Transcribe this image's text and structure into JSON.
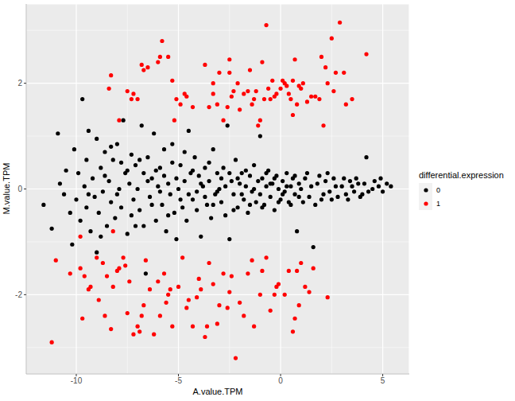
{
  "chart_data": {
    "type": "scatter",
    "x_label": "A.value.TPM",
    "y_label": "M.value.TPM",
    "legend_title": "differential.expression",
    "legend": "right",
    "grid": true,
    "marker": "circle",
    "xlim": [
      -12.45,
      6.3
    ],
    "xticks": [
      -10,
      -5,
      0,
      5
    ],
    "ylim": [
      -3.5,
      3.5
    ],
    "yticks": [
      -2,
      0,
      2
    ],
    "series": [
      {
        "name": "0",
        "color": "#000000",
        "x": [
          -11.6,
          -11.2,
          -10.9,
          -10.8,
          -10.6,
          -10.5,
          -10.3,
          -10.2,
          -10.1,
          -10.0,
          -9.9,
          -9.8,
          -9.7,
          -9.6,
          -9.5,
          -9.5,
          -9.4,
          -9.3,
          -9.2,
          -9.1,
          -9.0,
          -8.9,
          -8.8,
          -8.7,
          -8.6,
          -8.5,
          -8.4,
          -8.3,
          -8.2,
          -8.1,
          -8.0,
          -7.9,
          -7.8,
          -7.7,
          -7.6,
          -7.5,
          -7.4,
          -7.3,
          -7.2,
          -7.1,
          -9.0,
          -8.8,
          -8.6,
          -8.3,
          -8.0,
          -7.8,
          -7.5,
          -7.3,
          -7.1,
          -9.4,
          -7.0,
          -6.9,
          -6.8,
          -6.7,
          -6.6,
          -6.5,
          -6.4,
          -6.3,
          -6.2,
          -6.1,
          -6.0,
          -5.9,
          -5.8,
          -5.7,
          -5.6,
          -5.5,
          -5.4,
          -5.3,
          -5.2,
          -5.1,
          -6.9,
          -6.7,
          -6.5,
          -6.3,
          -6.1,
          -5.9,
          -5.7,
          -5.5,
          -5.3,
          -5.1,
          -5.0,
          -4.9,
          -4.8,
          -4.7,
          -4.6,
          -4.5,
          -4.4,
          -4.3,
          -4.2,
          -4.1,
          -4.0,
          -3.9,
          -3.8,
          -3.7,
          -3.6,
          -3.5,
          -3.4,
          -3.3,
          -3.2,
          -3.1,
          -4.9,
          -4.7,
          -4.5,
          -4.3,
          -4.1,
          -3.9,
          -3.7,
          -3.5,
          -3.3,
          -3.1,
          -3.0,
          -2.9,
          -2.8,
          -2.7,
          -2.6,
          -2.5,
          -2.4,
          -2.3,
          -2.2,
          -2.1,
          -2.0,
          -1.9,
          -1.8,
          -1.7,
          -1.6,
          -1.5,
          -1.4,
          -1.3,
          -1.2,
          -1.1,
          -2.9,
          -2.7,
          -2.5,
          -2.3,
          -2.1,
          -1.9,
          -1.7,
          -1.5,
          -1.3,
          -1.0,
          -1.0,
          -0.9,
          -0.8,
          -0.7,
          -0.6,
          -0.5,
          -0.4,
          -0.3,
          -0.2,
          -0.1,
          0.0,
          0.1,
          0.2,
          0.3,
          0.4,
          0.5,
          0.6,
          0.7,
          0.8,
          0.9,
          -0.9,
          -0.7,
          -0.5,
          -0.3,
          -0.1,
          0.1,
          0.3,
          0.5,
          0.7,
          0.9,
          1.0,
          1.2,
          1.4,
          1.6,
          1.8,
          2.0,
          2.2,
          2.4,
          2.6,
          2.8,
          3.0,
          3.2,
          3.4,
          3.6,
          3.8,
          4.0,
          4.2,
          4.5,
          4.8,
          5.4,
          1.1,
          1.3,
          1.5,
          1.7,
          1.9,
          2.1,
          2.3,
          2.5,
          2.7,
          3.1,
          3.3,
          3.5,
          3.7,
          3.9,
          4.1,
          4.3,
          4.6,
          5.0,
          5.2,
          4.9
        ],
        "values": [
          -0.3,
          -0.75,
          1.05,
          0.1,
          -0.1,
          0.35,
          -0.45,
          -1.05,
          0.75,
          -0.2,
          0.3,
          -0.6,
          1.7,
          0.05,
          -0.35,
          0.55,
          1.1,
          -0.8,
          0.2,
          -0.15,
          0.95,
          -0.45,
          0.4,
          -0.05,
          0.7,
          -0.7,
          0.15,
          -0.25,
          0.55,
          -0.55,
          0.85,
          0.0,
          -0.35,
          1.3,
          0.3,
          -0.85,
          0.1,
          0.65,
          -0.2,
          0.45,
          -1.2,
          -0.9,
          0.25,
          0.8,
          -0.1,
          0.5,
          0.35,
          -0.5,
          -0.7,
          -0.1,
          0.0,
          -0.4,
          1.2,
          0.3,
          -1.6,
          0.6,
          -0.15,
          0.2,
          1.05,
          -0.6,
          0.05,
          0.4,
          -0.3,
          0.75,
          -0.8,
          0.1,
          -0.1,
          0.5,
          -0.45,
          -0.95,
          0.55,
          -0.7,
          0.15,
          -0.3,
          0.35,
          -0.05,
          0.25,
          -0.5,
          0.85,
          0.2,
          0.0,
          0.45,
          -0.35,
          0.15,
          -0.6,
          1.1,
          0.3,
          -0.2,
          0.6,
          -0.05,
          0.25,
          -0.9,
          0.05,
          0.4,
          -0.3,
          0.15,
          -0.55,
          0.75,
          -0.1,
          0.3,
          -0.2,
          0.7,
          -0.1,
          0.35,
          -0.4,
          0.1,
          -0.15,
          0.5,
          -0.3,
          -0.05,
          0.0,
          -0.25,
          0.4,
          -0.5,
          1.2,
          -0.95,
          0.15,
          -0.1,
          0.55,
          -0.35,
          0.1,
          0.3,
          -0.2,
          0.05,
          -0.45,
          0.25,
          -0.05,
          0.45,
          -0.25,
          0.15,
          0.2,
          0.05,
          0.3,
          -0.4,
          0.2,
          -0.1,
          0.35,
          -0.3,
          0.0,
          1.0,
          -0.1,
          0.2,
          -0.3,
          0.05,
          0.35,
          -0.15,
          0.1,
          -0.4,
          0.25,
          0.0,
          -0.2,
          0.15,
          -0.05,
          0.3,
          -0.25,
          0.05,
          0.2,
          -0.1,
          -0.8,
          0.1,
          -0.35,
          0.3,
          0.1,
          0.2,
          -0.25,
          -0.1,
          0.05,
          -0.3,
          0.25,
          -0.15,
          0.0,
          0.2,
          -0.15,
          -1.1,
          0.1,
          -0.2,
          0.15,
          -0.05,
          0.2,
          -0.15,
          0.05,
          -0.1,
          0.15,
          -0.05,
          0.1,
          -0.1,
          0.6,
          0.0,
          0.05,
          0.05,
          -0.25,
          0.3,
          0.05,
          -0.3,
          0.25,
          -0.1,
          0.3,
          -0.2,
          0.05,
          0.2,
          -0.2,
          0.05,
          0.2,
          -0.15,
          0.1,
          -0.05,
          0.15,
          -0.05,
          0.1,
          0.2
        ]
      },
      {
        "name": "1",
        "color": "#FF0000",
        "x": [
          -8.3,
          -8.4,
          -7.9,
          -7.5,
          -7.2,
          -7.0,
          -7.3,
          -6.8,
          -6.7,
          -6.5,
          -6.0,
          -5.8,
          -5.9,
          -5.5,
          -5.3,
          -5.2,
          -5.1,
          -4.9,
          -4.7,
          -4.6,
          -4.3,
          -3.7,
          -3.5,
          -3.3,
          -3.3,
          -3.1,
          -3.0,
          -2.8,
          -2.6,
          -2.5,
          -2.5,
          -2.4,
          -2.3,
          -2.1,
          -2.0,
          -1.8,
          -1.6,
          -1.5,
          -1.4,
          -1.3,
          -1.2,
          -1.0,
          -0.9,
          -0.8,
          -0.7,
          -0.6,
          -0.5,
          -0.4,
          -0.3,
          -0.2,
          0.0,
          0.1,
          0.2,
          0.3,
          0.4,
          0.5,
          0.6,
          0.7,
          0.8,
          0.9,
          1.0,
          1.1,
          1.3,
          1.5,
          1.7,
          2.0,
          2.1,
          2.2,
          2.3,
          2.5,
          2.6,
          2.7,
          2.9,
          3.1,
          3.2,
          3.5,
          4.2,
          0.6,
          1.9,
          -1.1,
          -11.2,
          -11.0,
          -10.3,
          -9.8,
          -9.7,
          -9.6,
          -9.4,
          -9.3,
          -9.0,
          -8.7,
          -8.6,
          -8.5,
          -8.3,
          -8.2,
          -8.0,
          -7.9,
          -7.7,
          -7.5,
          -7.4,
          -7.2,
          -7.0,
          -6.9,
          -6.7,
          -6.6,
          -6.4,
          -6.2,
          -6.0,
          -5.9,
          -5.7,
          -5.6,
          -5.5,
          -5.3,
          -5.0,
          -4.8,
          -4.6,
          -4.5,
          -4.3,
          -4.1,
          -3.9,
          -3.7,
          -3.6,
          -3.5,
          -3.3,
          -3.1,
          -3.0,
          -2.8,
          -2.6,
          -2.5,
          -2.4,
          -2.2,
          -2.0,
          -1.8,
          -1.6,
          -1.4,
          -1.3,
          -1.0,
          -0.9,
          -0.7,
          -0.5,
          -0.3,
          -0.2,
          -0.1,
          0.2,
          0.4,
          0.6,
          0.7,
          0.8,
          0.9,
          1.0,
          1.2,
          1.4,
          1.6,
          2.3,
          -7.6,
          -6.8,
          -4.0,
          -5.4,
          -8.9,
          -9.8,
          -8.2
        ],
        "values": [
          2.15,
          1.9,
          1.3,
          1.85,
          1.8,
          1.7,
          1.7,
          2.35,
          2.25,
          2.3,
          2.4,
          2.8,
          2.5,
          2.5,
          2.05,
          1.3,
          1.7,
          1.6,
          1.8,
          1.75,
          1.55,
          2.35,
          1.55,
          2.0,
          1.8,
          1.6,
          2.2,
          1.3,
          1.55,
          2.45,
          2.2,
          1.75,
          1.85,
          2.0,
          1.5,
          1.8,
          1.85,
          2.25,
          1.6,
          1.7,
          1.85,
          1.3,
          2.4,
          1.7,
          3.1,
          1.9,
          1.7,
          2.05,
          1.75,
          1.8,
          1.9,
          2.05,
          2.0,
          1.95,
          1.8,
          1.7,
          2.05,
          2.45,
          1.6,
          1.95,
          1.9,
          2.0,
          1.65,
          1.75,
          1.75,
          2.5,
          1.2,
          2.3,
          2.0,
          2.85,
          1.85,
          2.2,
          3.15,
          2.2,
          1.6,
          1.7,
          2.55,
          1.4,
          1.7,
          1.2,
          -2.9,
          -1.35,
          -1.6,
          -1.5,
          -2.45,
          -1.65,
          -1.9,
          -1.85,
          -1.3,
          -1.4,
          -2.4,
          -1.65,
          -2.65,
          -1.85,
          -1.55,
          -1.5,
          -1.3,
          -2.35,
          -1.75,
          -2.75,
          -2.6,
          -2.7,
          -2.2,
          -1.35,
          -1.9,
          -2.75,
          -1.75,
          -2.4,
          -1.6,
          -2.15,
          -2.0,
          -2.6,
          -1.85,
          -1.3,
          -2.25,
          -2.1,
          -2.6,
          -2.05,
          -1.9,
          -2.8,
          -2.6,
          -1.4,
          -1.8,
          -2.55,
          -2.2,
          -1.6,
          -2.25,
          -1.95,
          -1.65,
          -3.2,
          -2.15,
          -2.4,
          -1.6,
          -1.35,
          -2.6,
          -2.0,
          -1.55,
          -1.3,
          -2.3,
          -2.0,
          -1.85,
          -1.8,
          -2.0,
          -1.55,
          -2.7,
          -2.45,
          -1.55,
          -2.2,
          -1.4,
          -1.85,
          -1.95,
          -1.5,
          -2.05,
          -1.45,
          -2.4,
          -1.7,
          -1.9,
          -2.1,
          -0.9,
          -0.8
        ]
      }
    ]
  }
}
